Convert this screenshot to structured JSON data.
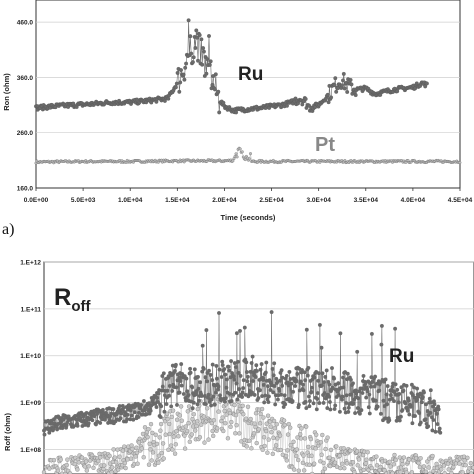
{
  "panel_a_label": "a)",
  "chart_data": [
    {
      "type": "scatter",
      "title": "",
      "xlabel": "Time (seconds)",
      "ylabel": "Ron (ohm)",
      "xlim": [
        0,
        45000
      ],
      "ylim": [
        160,
        500
      ],
      "x_ticks": [
        "0.0E+00",
        "5.0E+03",
        "1.0E+04",
        "1.5E+04",
        "2.0E+04",
        "2.5E+04",
        "3.0E+04",
        "3.5E+04",
        "4.0E+04",
        "4.5E+04"
      ],
      "y_ticks": [
        "160.0",
        "260.0",
        "360.0",
        "460.0"
      ],
      "annotations": [
        "Ru",
        "Pt"
      ],
      "series": [
        {
          "label": "Ru",
          "color": "#6b6b6b",
          "x": [
            0,
            2000,
            4000,
            6000,
            8000,
            10000,
            12000,
            14000,
            15000,
            16000,
            16500,
            17000,
            17500,
            18000,
            18500,
            19000,
            19500,
            20000,
            21000,
            22000,
            24000,
            26000,
            27000,
            28000,
            28500,
            29000,
            30000,
            31000,
            31500,
            32000,
            32500,
            33000,
            34000,
            35000,
            36000,
            37000,
            38000,
            39000,
            40000,
            41000,
            41500
          ],
          "y": [
            305,
            308,
            310,
            312,
            315,
            315,
            318,
            322,
            350,
            392,
            410,
            430,
            402,
            382,
            368,
            340,
            318,
            308,
            300,
            302,
            305,
            310,
            314,
            322,
            318,
            306,
            310,
            328,
            340,
            350,
            356,
            345,
            338,
            340,
            330,
            334,
            338,
            340,
            342,
            350,
            346
          ]
        },
        {
          "label": "Pt",
          "color": "#bdbdbd",
          "x": [
            0,
            5000,
            10000,
            15000,
            20000,
            21000,
            21500,
            22000,
            22500,
            23000,
            25000,
            30000,
            35000,
            40000,
            45000
          ],
          "y": [
            207,
            208,
            208,
            209,
            209,
            210,
            218,
            214,
            209,
            208,
            208,
            208,
            208,
            208,
            208
          ]
        }
      ]
    },
    {
      "type": "scatter",
      "title": "",
      "xlabel": "",
      "ylabel": "Roff (ohm)",
      "log_y": true,
      "xlim": [
        0,
        45000
      ],
      "ylim": [
        30000000,
        1000000000000
      ],
      "y_ticks": [
        "1.E+08",
        "1.E+09",
        "1.E+10",
        "1.E+11",
        "1.E+12"
      ],
      "annotations": [
        "R",
        "off",
        "Ru"
      ],
      "series": [
        {
          "label": "Ru",
          "color": "#6b6b6b",
          "x": [
            0,
            3000,
            6000,
            9000,
            11000,
            12000,
            13000,
            14000,
            16000,
            18000,
            20000,
            22000,
            24000,
            26000,
            28000,
            30000,
            32000,
            34000,
            36000,
            38000,
            40000,
            41500
          ],
          "y": [
            300000000,
            400000000,
            500000000,
            600000000,
            800000000,
            1200000000,
            2000000000,
            2500000000,
            2000000000,
            2500000000,
            3000000000,
            3000000000,
            2500000000,
            2000000000,
            2000000000,
            2000000000,
            1500000000,
            1500000000,
            1000000000,
            900000000,
            700000000,
            600000000
          ]
        },
        {
          "label": "Pt",
          "color": "#c9c9c9",
          "x": [
            0,
            4000,
            8000,
            10000,
            12000,
            14000,
            16000,
            18000,
            20000,
            22000,
            24000,
            26000,
            28000,
            30000,
            34000,
            38000,
            42000,
            45000
          ],
          "y": [
            35000000,
            45000000,
            60000000,
            90000000,
            150000000,
            250000000,
            400000000,
            500000000,
            450000000,
            300000000,
            180000000,
            120000000,
            90000000,
            70000000,
            50000000,
            45000000,
            40000000,
            40000000
          ]
        }
      ]
    }
  ]
}
